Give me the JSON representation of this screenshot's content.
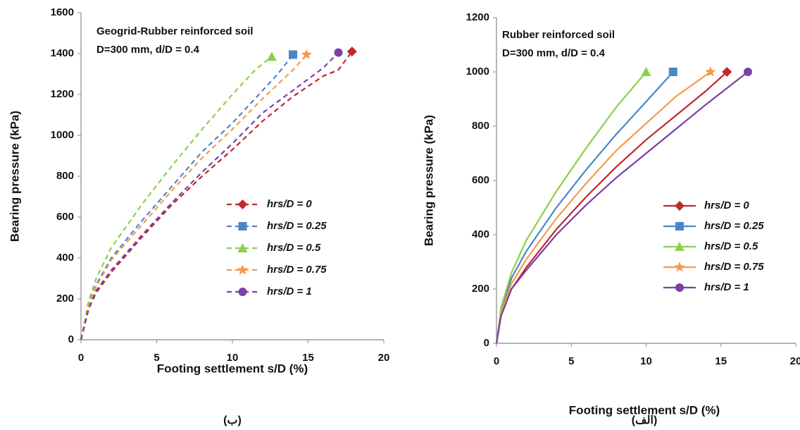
{
  "chart_data": [
    {
      "type": "line",
      "caption": "(ب)",
      "annotation": [
        "Geogrid-Rubber reinforced soil",
        "D=300 mm, d/D = 0.4"
      ],
      "x_label": "Footing settlement  s/D (%)",
      "y_label": "Bearing pressure (kPa)",
      "xlim": [
        0,
        20
      ],
      "xticks": [
        0,
        5,
        10,
        15,
        20
      ],
      "ylim": [
        0,
        1600
      ],
      "yticks": [
        0,
        200,
        400,
        600,
        800,
        1000,
        1200,
        1400,
        1600
      ],
      "dashed": true,
      "legend": "right",
      "series": [
        {
          "name": "hrs/D = 0",
          "color": "#c0282d",
          "marker": "diamond",
          "x": [
            0,
            0.5,
            1,
            2,
            4,
            6,
            8,
            10,
            12,
            14,
            16,
            17,
            17.9
          ],
          "values": [
            0,
            150,
            230,
            330,
            500,
            660,
            800,
            930,
            1070,
            1190,
            1290,
            1320,
            1410
          ]
        },
        {
          "name": "hrs/D = 0.25",
          "color": "#4a86c8",
          "marker": "square",
          "x": [
            0,
            0.5,
            1,
            2,
            4,
            6,
            8,
            10,
            12,
            13,
            14
          ],
          "values": [
            0,
            170,
            270,
            400,
            580,
            750,
            920,
            1060,
            1220,
            1300,
            1395
          ]
        },
        {
          "name": "hrs/D = 0.5",
          "color": "#8ccf4d",
          "marker": "triangle",
          "x": [
            0,
            0.5,
            1,
            2,
            4,
            6,
            8,
            10,
            11.5,
            12.6
          ],
          "values": [
            0,
            190,
            300,
            450,
            660,
            850,
            1030,
            1200,
            1320,
            1385
          ]
        },
        {
          "name": "hrs/D = 0.75",
          "color": "#f59a4a",
          "marker": "star",
          "x": [
            0,
            0.5,
            1,
            2,
            4,
            6,
            8,
            10,
            12,
            14,
            14.9
          ],
          "values": [
            0,
            170,
            260,
            390,
            560,
            730,
            890,
            1030,
            1180,
            1320,
            1395
          ]
        },
        {
          "name": "hrs/D = 1",
          "color": "#7b3fa6",
          "marker": "circle",
          "x": [
            0,
            0.5,
            1,
            2,
            4,
            6,
            8,
            10,
            12,
            14,
            16,
            17
          ],
          "values": [
            0,
            150,
            240,
            340,
            510,
            670,
            820,
            960,
            1110,
            1220,
            1330,
            1405
          ]
        }
      ]
    },
    {
      "type": "line",
      "caption": "(الف)",
      "annotation": [
        "Rubber reinforced soil",
        "D=300 mm, d/D = 0.4"
      ],
      "x_label": "Footing settlement  s/D (%)",
      "y_label": "Bearing pressure (kPa)",
      "xlim": [
        0,
        20
      ],
      "xticks": [
        0,
        5,
        10,
        15,
        20
      ],
      "ylim": [
        0,
        1200
      ],
      "yticks": [
        0,
        200,
        400,
        600,
        800,
        1000,
        1200
      ],
      "dashed": false,
      "legend": "right",
      "series": [
        {
          "name": "hrs/D = 0",
          "color": "#c0282d",
          "marker": "diamond",
          "x": [
            0,
            0.3,
            1,
            2,
            4,
            6,
            8,
            10,
            12,
            14,
            15.4
          ],
          "values": [
            0,
            100,
            200,
            280,
            420,
            540,
            650,
            750,
            840,
            930,
            1000
          ]
        },
        {
          "name": "hrs/D = 0.25",
          "color": "#4a86c8",
          "marker": "square",
          "x": [
            0,
            0.3,
            1,
            2,
            4,
            6,
            8,
            10,
            11.8
          ],
          "values": [
            0,
            120,
            240,
            340,
            500,
            640,
            770,
            890,
            1000
          ]
        },
        {
          "name": "hrs/D = 0.5",
          "color": "#8ccf4d",
          "marker": "triangle",
          "x": [
            0,
            0.3,
            1,
            2,
            4,
            6,
            8,
            10
          ],
          "values": [
            0,
            130,
            260,
            380,
            560,
            720,
            870,
            1000
          ]
        },
        {
          "name": "hrs/D = 0.75",
          "color": "#f59a4a",
          "marker": "star",
          "x": [
            0,
            0.3,
            1,
            2,
            4,
            6,
            8,
            10,
            12,
            14.3
          ],
          "values": [
            0,
            110,
            220,
            310,
            460,
            590,
            710,
            810,
            910,
            1000
          ]
        },
        {
          "name": "hrs/D = 1",
          "color": "#7b3fa6",
          "marker": "circle",
          "x": [
            0,
            0.3,
            1,
            2,
            4,
            6,
            8,
            10,
            12,
            14,
            16.8
          ],
          "values": [
            0,
            100,
            200,
            270,
            400,
            510,
            610,
            700,
            790,
            880,
            1000
          ]
        }
      ]
    }
  ]
}
